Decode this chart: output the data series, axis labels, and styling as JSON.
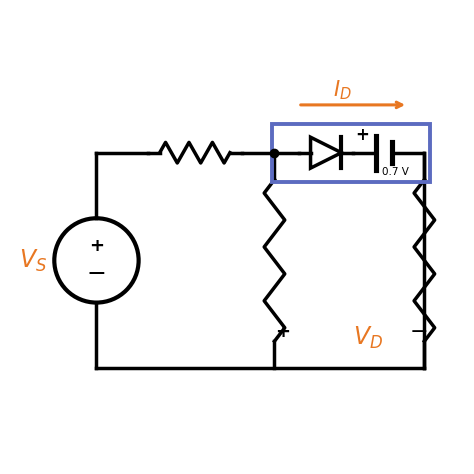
{
  "bg_color": "#ffffff",
  "line_color": "#000000",
  "orange_color": "#e87722",
  "blue_color": "#5c6bc0",
  "lw": 2.5,
  "fig_width": 4.74,
  "fig_height": 4.74,
  "dpi": 100
}
